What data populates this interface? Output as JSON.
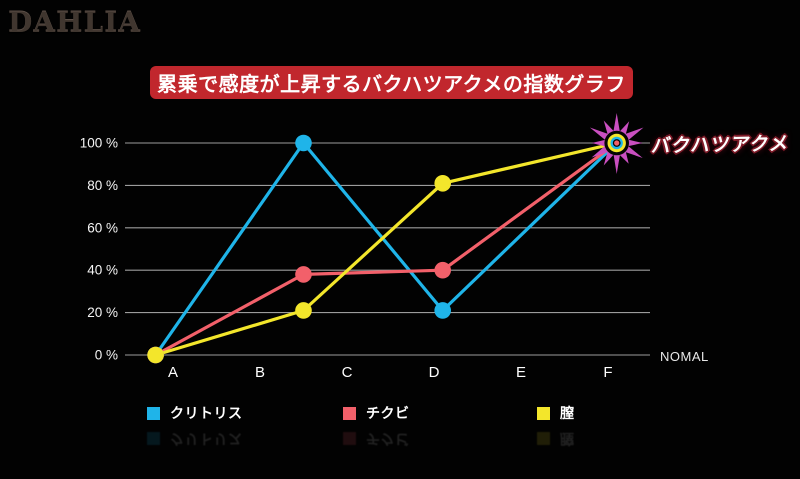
{
  "logo": {
    "text": "DAHLIA"
  },
  "style": {
    "background": "#020202",
    "banner_bg": "#c1272d",
    "banner_text_color": "#ffffff",
    "grid_color": "#9c9c9c",
    "tick_label_color": "#f5f5f5",
    "category_label_color": "#ffffff",
    "star_color": "#c94fc0",
    "annotation_fill": "#ffffff",
    "annotation_outline": "#7e1b28"
  },
  "chart_data": {
    "type": "line",
    "title": "累乗で感度が上昇するバクハツアクメの指数グラフ",
    "categories": [
      "A",
      "B",
      "C",
      "D",
      "E",
      "F"
    ],
    "y_ticks": [
      "0 %",
      "20 %",
      "40 %",
      "60 %",
      "80 %",
      "100 %"
    ],
    "ylim": [
      0,
      100
    ],
    "grid": true,
    "x_axis_right_label": "NOMAL",
    "legend_position": "bottom",
    "series": [
      {
        "name": "クリトリス",
        "color": "#1fb4e9",
        "points": [
          {
            "x": -0.2,
            "y": 0
          },
          {
            "x": 1.5,
            "y": 100
          },
          {
            "x": 3.1,
            "y": 21
          },
          {
            "x": 5.1,
            "y": 100
          }
        ]
      },
      {
        "name": "チクビ",
        "color": "#f2606a",
        "points": [
          {
            "x": -0.2,
            "y": 0
          },
          {
            "x": 1.5,
            "y": 38
          },
          {
            "x": 3.1,
            "y": 40
          },
          {
            "x": 5.1,
            "y": 100
          }
        ]
      },
      {
        "name": "膣",
        "color": "#f3e62b",
        "points": [
          {
            "x": -0.2,
            "y": 0
          },
          {
            "x": 1.5,
            "y": 21
          },
          {
            "x": 3.1,
            "y": 81
          },
          {
            "x": 5.1,
            "y": 100
          }
        ]
      }
    ],
    "end_annotation": {
      "label": "バクハツアクメ",
      "at": {
        "x": 5.1,
        "y": 100
      }
    }
  }
}
